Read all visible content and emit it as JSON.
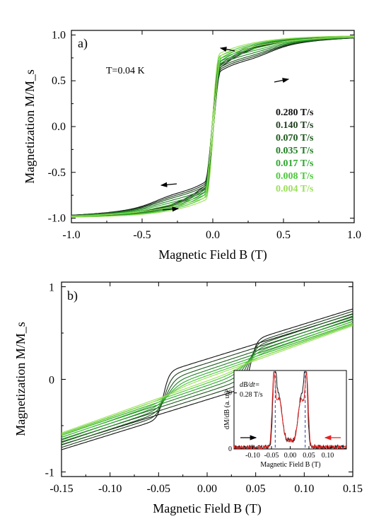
{
  "chart_data": [
    {
      "panel": "a)",
      "type": "line",
      "annotation": "T=0.04 K",
      "xlabel": "Magnetic Field B (T)",
      "ylabel": "Magnetization M/M_s",
      "xlim": [
        -1.0,
        1.0
      ],
      "ylim": [
        -1.05,
        1.05
      ],
      "xticks": [
        "-1.0",
        "-0.5",
        "0.0",
        "0.5",
        "1.0"
      ],
      "yticks": [
        "-1.0",
        "-0.5",
        "0.0",
        "0.5",
        "1.0"
      ],
      "series": [
        {
          "name": "0.280 T/s",
          "color": "#111111",
          "plateau": 0.64
        },
        {
          "name": "0.140 T/s",
          "color": "#1f3f1f",
          "plateau": 0.66
        },
        {
          "name": "0.070 T/s",
          "color": "#1c5a1c",
          "plateau": 0.68
        },
        {
          "name": "0.035 T/s",
          "color": "#1f7f22",
          "plateau": 0.71
        },
        {
          "name": "0.017 T/s",
          "color": "#2ea82e",
          "plateau": 0.74
        },
        {
          "name": "0.008 T/s",
          "color": "#4cc93a",
          "plateau": 0.77
        },
        {
          "name": "0.004 T/s",
          "color": "#9be05a",
          "plateau": 0.8
        }
      ]
    },
    {
      "panel": "b)",
      "type": "line",
      "xlabel": "Magnetic Field B (T)",
      "ylabel": "Magnetization M/M_s",
      "xlim": [
        -0.15,
        0.15
      ],
      "ylim": [
        -1.05,
        1.05
      ],
      "xticks": [
        "-0.15",
        "-0.10",
        "-0.05",
        "0.00",
        "0.05",
        "0.10",
        "0.15"
      ],
      "yticks": [
        "-1",
        "0",
        "1"
      ],
      "inset": {
        "annotation_line1": "dB/dt=",
        "annotation_line2": "0.28 T/s",
        "xlabel": "Magnetic Field B (T)",
        "ylabel": "dM/dB (a. u.)",
        "xlim": [
          -0.15,
          0.15
        ],
        "ylim": [
          0,
          28
        ],
        "xticks": [
          "-0.10",
          "-0.05",
          "0.00",
          "0.05",
          "0.10"
        ],
        "yticks": [
          "0",
          "20"
        ],
        "dashed_lines_x": [
          -0.04,
          0.04
        ],
        "series": [
          {
            "color": "#111111",
            "peak_x": 0.042,
            "peak_y": 26,
            "inner_peak_x": 0.03,
            "inner_peak_y": 18
          },
          {
            "color": "#e52222",
            "peak_x": 0.044,
            "peak_y": 22,
            "inner_peak_x": 0.03,
            "inner_peak_y": 17
          }
        ]
      }
    }
  ]
}
